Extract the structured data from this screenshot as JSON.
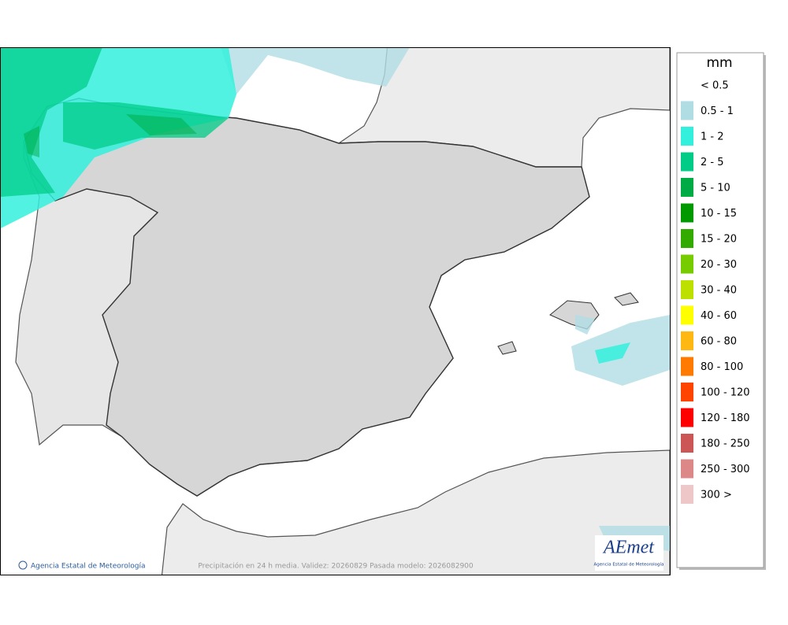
{
  "map": {
    "footer_credit": "Agencia Estatal de Meteorología",
    "caption": "Precipitación en 24 h media. Validez: 20260829 Pasada modelo: 2026082900",
    "logo": {
      "title": "AEmet",
      "subtitle": "Agencia Estatal de Meteorología"
    }
  },
  "legend": {
    "title": "mm",
    "items": [
      {
        "label": "< 0.5"
      },
      {
        "label": "0.5 - 1",
        "color": "#b0dde4"
      },
      {
        "label": "1 - 2",
        "color": "#33f0dc"
      },
      {
        "label": "2 - 5",
        "color": "#00cc88"
      },
      {
        "label": "5 - 10",
        "color": "#00aa44"
      },
      {
        "label": "10 - 15",
        "color": "#009900"
      },
      {
        "label": "15 - 20",
        "color": "#33aa00"
      },
      {
        "label": "20 - 30",
        "color": "#77cc00"
      },
      {
        "label": "30 - 40",
        "color": "#bde000"
      },
      {
        "label": "40 - 60",
        "color": "#ffff00"
      },
      {
        "label": "60 - 80",
        "color": "#ffb812"
      },
      {
        "label": "80 - 100",
        "color": "#ff7a00"
      },
      {
        "label": "100 - 120",
        "color": "#ff4400"
      },
      {
        "label": "120 - 180",
        "color": "#ff0000"
      },
      {
        "label": "180 - 250",
        "color": "#cc5555"
      },
      {
        "label": "250 - 300",
        "color": "#dd8888"
      },
      {
        "label": "300 >",
        "color": "#eec8c8"
      }
    ]
  }
}
